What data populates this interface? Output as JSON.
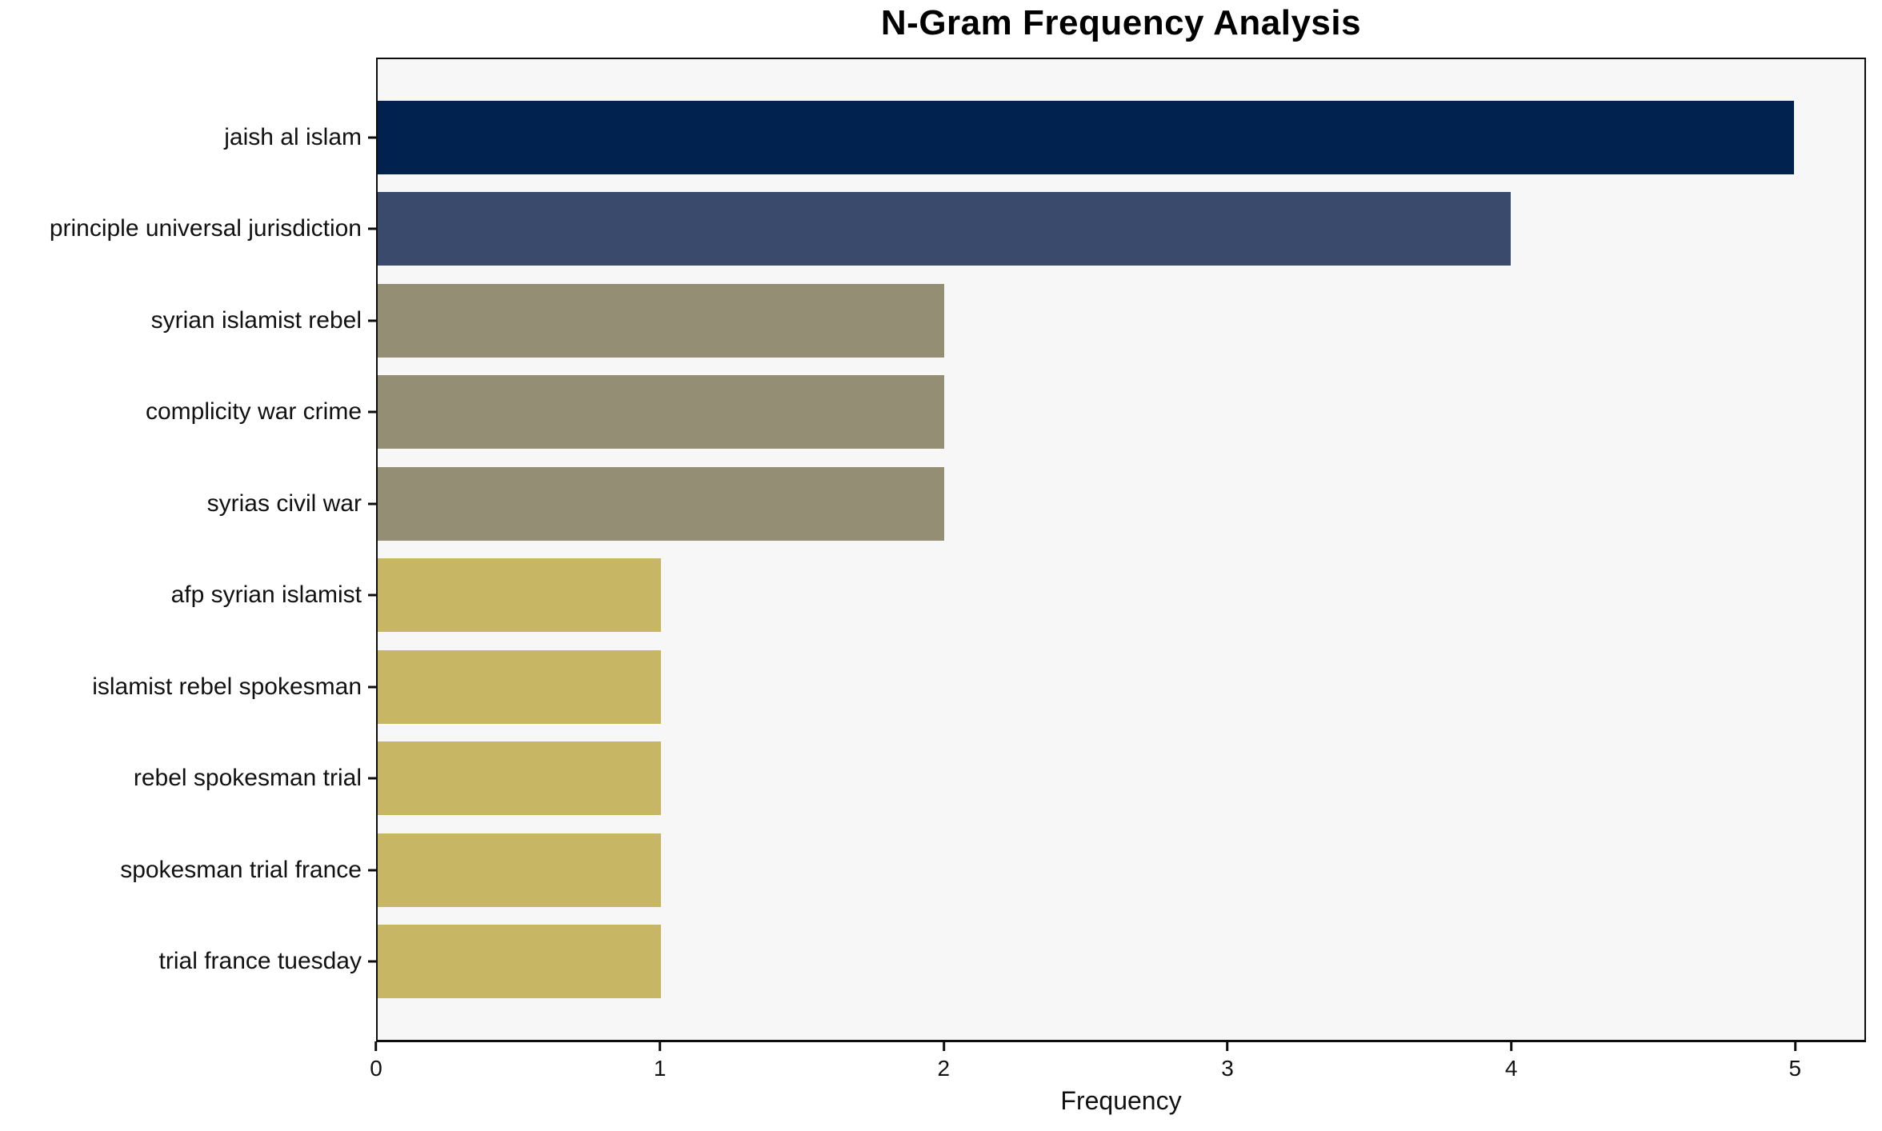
{
  "title": "N-Gram Frequency Analysis",
  "chart_data": {
    "type": "bar",
    "orientation": "horizontal",
    "title": "N-Gram Frequency Analysis",
    "xlabel": "Frequency",
    "ylabel": "",
    "categories": [
      "jaish al islam",
      "principle universal jurisdiction",
      "syrian islamist rebel",
      "complicity war crime",
      "syrias civil war",
      "afp syrian islamist",
      "islamist rebel spokesman",
      "rebel spokesman trial",
      "spokesman trial france",
      "trial france tuesday"
    ],
    "values": [
      5,
      4,
      2,
      2,
      2,
      1,
      1,
      1,
      1,
      1
    ],
    "bar_colors": [
      "#01224e",
      "#3a4a6c",
      "#938e74",
      "#938e74",
      "#938e74",
      "#c7b663",
      "#c7b663",
      "#c7b663",
      "#c7b663",
      "#c7b663"
    ],
    "xticks": [
      0,
      1,
      2,
      3,
      4,
      5
    ],
    "xlim": [
      0,
      5.25
    ],
    "grid": false,
    "legend_position": "none",
    "plot_background": "#f7f7f7",
    "figure_background": "#ffffff"
  }
}
